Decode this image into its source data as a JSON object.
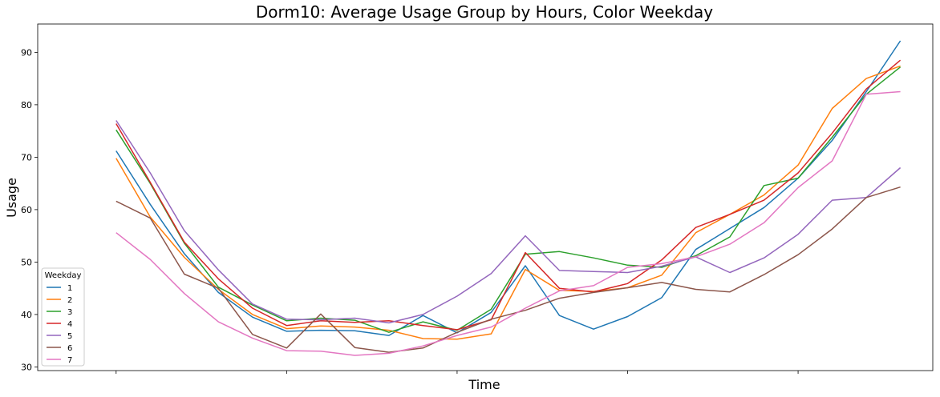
{
  "chart_data": {
    "type": "line",
    "title": "Dorm10: Average Usage Group by Hours, Color Weekday",
    "xlabel": "Time",
    "ylabel": "Usage",
    "ylim": [
      29.3,
      95.4
    ],
    "yticks": [
      30,
      40,
      50,
      60,
      70,
      80,
      90
    ],
    "x": [
      0,
      1,
      2,
      3,
      4,
      5,
      6,
      7,
      8,
      9,
      10,
      11,
      12,
      13,
      14,
      15,
      16,
      17,
      18,
      19,
      20,
      21,
      22,
      23
    ],
    "xticks": [
      0,
      5,
      10,
      15,
      20
    ],
    "grid": false,
    "legend": {
      "title": "Weekday",
      "placement": "lower-left"
    },
    "series": [
      {
        "name": "1",
        "color": "#1f77b4",
        "values": [
          71.2,
          61.0,
          51.6,
          44.2,
          39.5,
          36.8,
          37.0,
          36.9,
          36.0,
          39.8,
          36.5,
          40.4,
          49.3,
          39.8,
          37.2,
          39.6,
          43.2,
          52.4,
          56.4,
          60.4,
          66.0,
          73.2,
          82.5,
          92.2
        ]
      },
      {
        "name": "2",
        "color": "#ff7f0e",
        "values": [
          69.8,
          58.6,
          50.9,
          44.8,
          40.0,
          37.3,
          37.8,
          37.6,
          37.0,
          35.4,
          35.3,
          36.3,
          48.6,
          44.6,
          44.4,
          45.1,
          47.5,
          55.6,
          59.1,
          62.8,
          68.5,
          79.3,
          85.0,
          87.4
        ]
      },
      {
        "name": "3",
        "color": "#2ca02c",
        "values": [
          75.2,
          65.0,
          53.6,
          45.2,
          41.8,
          38.8,
          39.3,
          38.9,
          36.6,
          38.6,
          37.0,
          41.0,
          51.5,
          52.0,
          50.8,
          49.4,
          49.0,
          51.2,
          54.8,
          64.6,
          66.0,
          73.8,
          82.0,
          87.2
        ]
      },
      {
        "name": "4",
        "color": "#d62728",
        "values": [
          76.4,
          65.2,
          53.8,
          46.8,
          41.2,
          37.9,
          38.8,
          38.5,
          38.8,
          37.9,
          37.1,
          39.0,
          51.8,
          45.0,
          44.3,
          45.9,
          50.4,
          56.6,
          59.1,
          61.8,
          67.0,
          74.6,
          83.0,
          88.5
        ]
      },
      {
        "name": "5",
        "color": "#9467bd",
        "values": [
          77.0,
          67.0,
          56.0,
          48.5,
          42.0,
          39.1,
          39.0,
          39.3,
          38.4,
          40.0,
          43.5,
          47.8,
          55.0,
          48.4,
          48.2,
          48.0,
          49.2,
          51.0,
          48.0,
          50.8,
          55.3,
          61.8,
          62.3,
          68.0
        ]
      },
      {
        "name": "6",
        "color": "#8c564b",
        "values": [
          61.6,
          58.4,
          47.7,
          45.0,
          36.2,
          33.6,
          40.1,
          33.7,
          32.8,
          33.6,
          36.6,
          39.1,
          40.8,
          43.1,
          44.2,
          45.1,
          46.1,
          44.8,
          44.3,
          47.6,
          51.4,
          56.3,
          62.3,
          64.3
        ]
      },
      {
        "name": "7",
        "color": "#e377c2",
        "values": [
          55.6,
          50.5,
          44.0,
          38.6,
          35.5,
          33.1,
          33.0,
          32.2,
          32.6,
          34.0,
          36.0,
          37.6,
          41.2,
          44.5,
          45.5,
          49.0,
          49.7,
          51.0,
          53.4,
          57.5,
          64.2,
          69.3,
          82.0,
          82.5
        ]
      }
    ]
  }
}
